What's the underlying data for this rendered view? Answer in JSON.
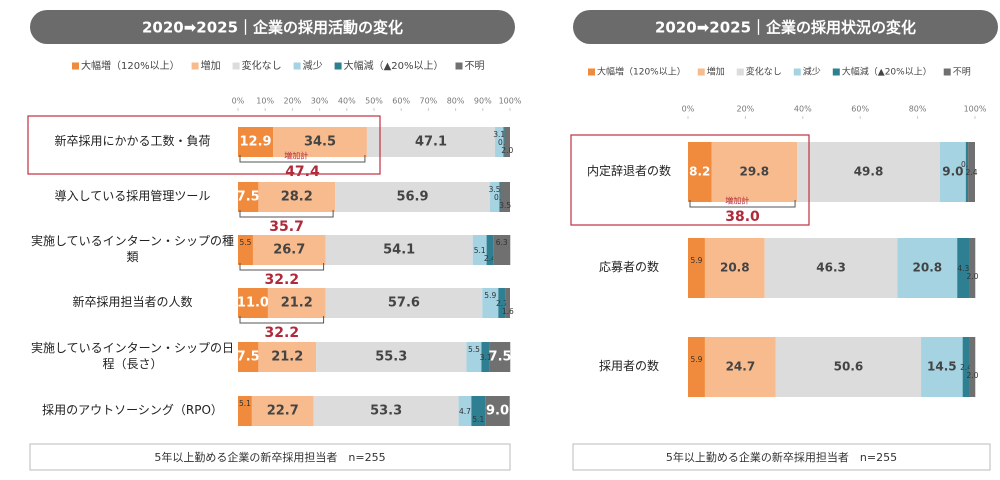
{
  "chart_data": [
    {
      "type": "bar",
      "orientation": "horizontal",
      "stacked": true,
      "title": "2020➡2025｜企業の採用活動の変化",
      "categories": [
        "新卒採用にかかる工数・負荷",
        "導入している採用管理ツール",
        "実施しているインターン・シップの種類",
        "新卒採用担当者の人数",
        "実施しているインターン・シップの日程（長さ）",
        "採用のアウトソーシング（RPO）"
      ],
      "series": [
        {
          "name": "大幅増（120%以上）",
          "color": "#f08a3c",
          "values": [
            12.9,
            7.5,
            5.5,
            11.0,
            7.5,
            5.1
          ],
          "value_labels": [
            "12.9",
            "7.5",
            "5.5",
            "11.0",
            "7.5",
            "5.1"
          ]
        },
        {
          "name": "増加",
          "color": "#f7bb8e",
          "values": [
            34.5,
            28.2,
            26.7,
            21.2,
            21.2,
            22.7
          ],
          "value_labels": [
            "34.5",
            "28.2",
            "26.7",
            "21.2",
            "21.2",
            "22.7"
          ]
        },
        {
          "name": "変化なし",
          "color": "#dcdcdc",
          "values": [
            47.1,
            56.9,
            54.1,
            57.6,
            55.3,
            53.3
          ],
          "value_labels": [
            "47.1",
            "56.9",
            "54.1",
            "57.6",
            "55.3",
            "53.3"
          ]
        },
        {
          "name": "減少",
          "color": "#a6d3e2",
          "values": [
            3.1,
            3.5,
            5.1,
            5.9,
            5.5,
            4.7
          ],
          "value_labels": [
            "3.1",
            "3.5",
            "5.1",
            "5.9",
            "5.5",
            "4.7"
          ]
        },
        {
          "name": "大幅減（▲20%以上）",
          "color": "#2f7f93",
          "values": [
            0.4,
            0.4,
            2.4,
            2.7,
            3.1,
            5.1
          ],
          "value_labels": [
            "0.4",
            "0.4",
            "2.4",
            "2.7",
            "3.1",
            "5.1"
          ]
        },
        {
          "name": "不明",
          "color": "#707070",
          "values": [
            2.0,
            3.5,
            6.3,
            1.6,
            7.5,
            9.0
          ],
          "value_labels": [
            "2.0",
            "3.5",
            "6.3",
            "1.6",
            "7.5",
            "9.0"
          ]
        }
      ],
      "xlim": [
        0,
        100
      ],
      "xticks": [
        {
          "value": 0,
          "label": "0%"
        },
        {
          "value": 10,
          "label": "10%"
        },
        {
          "value": 20,
          "label": "20%"
        },
        {
          "value": 30,
          "label": "30%"
        },
        {
          "value": 40,
          "label": "40%"
        },
        {
          "value": 50,
          "label": "50%"
        },
        {
          "value": 60,
          "label": "60%"
        },
        {
          "value": 70,
          "label": "70%"
        },
        {
          "value": 80,
          "label": "80%"
        },
        {
          "value": 90,
          "label": "90%"
        },
        {
          "value": 100,
          "label": "100%"
        }
      ],
      "legend": "top",
      "annotation": "増加計",
      "increase_totals": [
        47.4,
        35.7,
        32.2,
        32.2,
        null,
        null
      ],
      "increase_total_labels": [
        "47.4",
        "35.7",
        "32.2",
        "32.2",
        null,
        null
      ],
      "note": "5年以上勤める企業の新卒採用担当者　n=255"
    },
    {
      "type": "bar",
      "orientation": "horizontal",
      "stacked": true,
      "title": "2020➡2025｜企業の採用状況の変化",
      "categories": [
        "内定辞退者の数",
        "応募者の数",
        "採用者の数"
      ],
      "series": [
        {
          "name": "大幅増（120%以上）",
          "color": "#f08a3c",
          "values": [
            8.2,
            5.9,
            5.9
          ],
          "value_labels": [
            "8.2",
            "5.9",
            "5.9"
          ]
        },
        {
          "name": "増加",
          "color": "#f7bb8e",
          "values": [
            29.8,
            20.8,
            24.7
          ],
          "value_labels": [
            "29.8",
            "20.8",
            "24.7"
          ]
        },
        {
          "name": "変化なし",
          "color": "#dcdcdc",
          "values": [
            49.8,
            46.3,
            50.6
          ],
          "value_labels": [
            "49.8",
            "46.3",
            "50.6"
          ]
        },
        {
          "name": "減少",
          "color": "#a6d3e2",
          "values": [
            9.0,
            20.8,
            14.5
          ],
          "value_labels": [
            "9.0",
            "20.8",
            "14.5"
          ]
        },
        {
          "name": "大幅減（▲20%以上）",
          "color": "#2f7f93",
          "values": [
            0.8,
            4.3,
            2.4
          ],
          "value_labels": [
            "0.8",
            "4.3",
            "2.4"
          ]
        },
        {
          "name": "不明",
          "color": "#707070",
          "values": [
            2.4,
            2.0,
            2.0
          ],
          "value_labels": [
            "2.4",
            "2.0",
            "2.0"
          ]
        }
      ],
      "xlim": [
        0,
        100
      ],
      "xticks": [
        {
          "value": 0,
          "label": "0%"
        },
        {
          "value": 20,
          "label": "20%"
        },
        {
          "value": 40,
          "label": "40%"
        },
        {
          "value": 60,
          "label": "60%"
        },
        {
          "value": 80,
          "label": "80%"
        },
        {
          "value": 100,
          "label": "100%"
        }
      ],
      "legend": "top",
      "annotation": "増加計",
      "increase_totals": [
        38.0,
        null,
        null
      ],
      "increase_total_labels": [
        "38.0",
        null,
        null
      ],
      "note": "5年以上勤める企業の新卒採用担当者　n=255"
    }
  ]
}
